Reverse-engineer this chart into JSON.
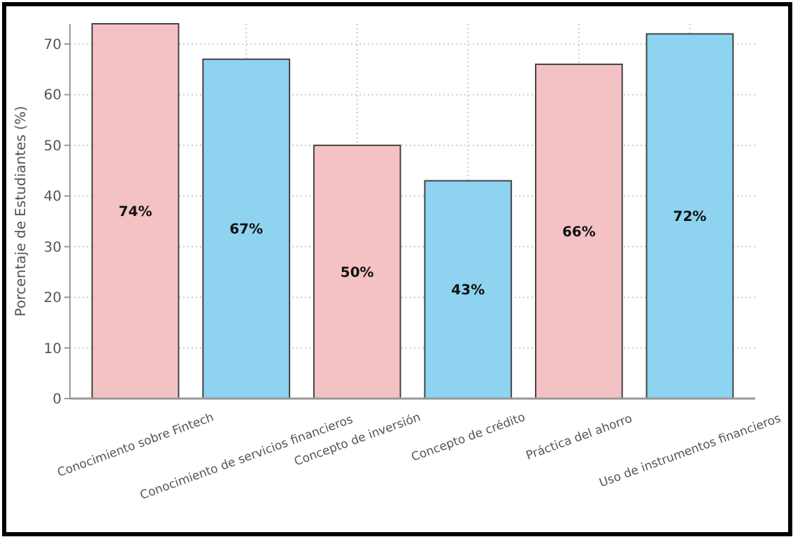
{
  "chart_data": {
    "type": "bar",
    "ylabel": "Porcentaje de Estudiantes (%)",
    "categories": [
      "Conocimiento sobre Fintech",
      "Conocimiento de servicios financieros",
      "Concepto de inversión",
      "Concepto de crédito",
      "Práctica del ahorro",
      "Uso de instrumentos financieros"
    ],
    "values": [
      74,
      67,
      50,
      43,
      66,
      72
    ],
    "colors": [
      "#f4c2c4",
      "#8ed3ef",
      "#f4c2c4",
      "#8ed3ef",
      "#f4c2c4",
      "#8ed3ef"
    ],
    "value_labels": [
      "74%",
      "67%",
      "50%",
      "43%",
      "66%",
      "72%"
    ],
    "ylim": [
      0,
      74
    ],
    "yticks": [
      0,
      10,
      20,
      30,
      40,
      50,
      60,
      70
    ],
    "grid": true
  }
}
